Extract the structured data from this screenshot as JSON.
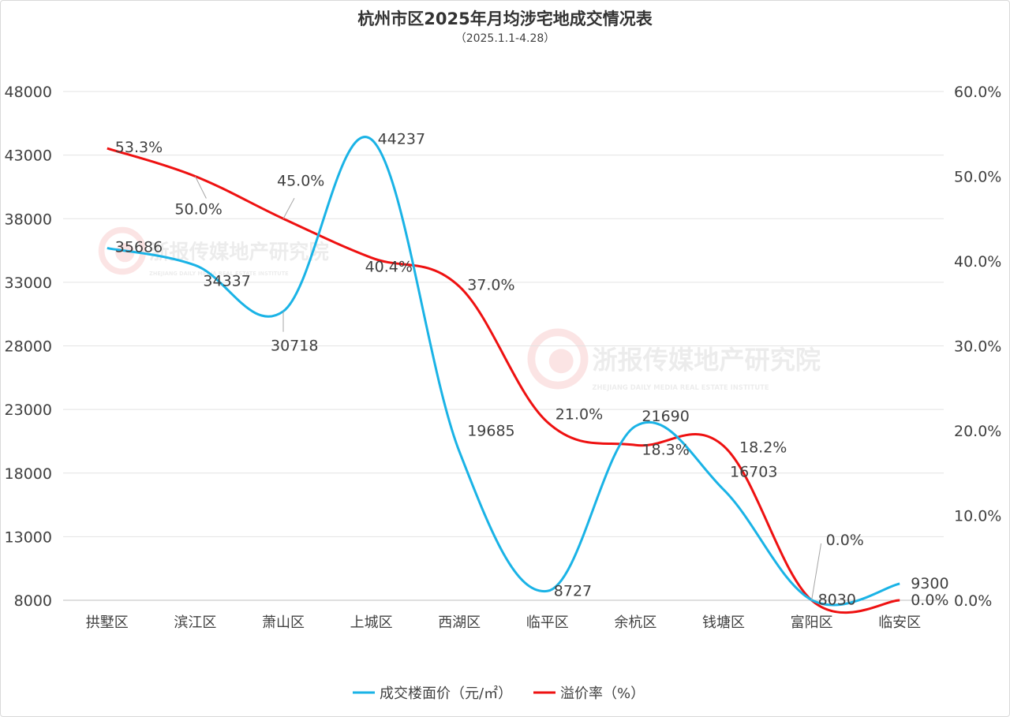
{
  "title": "杭州市区2025年月均涉宅地成交情况表",
  "subtitle": "（2025.1.1-4.28）",
  "watermark": {
    "name": "浙报传媒地产研究院",
    "subtitle": "ZHEJIANG DAILY MEDIA REAL ESTATE INSTITUTE"
  },
  "colors": {
    "price": "#1ab3e6",
    "premium": "#ee1111",
    "grid": "#e3e3e3",
    "text": "#404040"
  },
  "chart_data": {
    "type": "line",
    "categories": [
      "拱墅区",
      "滨江区",
      "萧山区",
      "上城区",
      "西湖区",
      "临平区",
      "余杭区",
      "钱塘区",
      "富阳区",
      "临安区"
    ],
    "y_left": {
      "min": 8000,
      "max": 48000,
      "ticks": [
        "48000",
        "43000",
        "38000",
        "33000",
        "28000",
        "23000",
        "18000",
        "13000",
        "8000"
      ]
    },
    "y_right": {
      "min": 0,
      "max": 60,
      "ticks": [
        "60.0%",
        "50.0%",
        "40.0%",
        "30.0%",
        "20.0%",
        "10.0%",
        "0.0%"
      ]
    },
    "grid": true,
    "legend_position": "bottom",
    "series": [
      {
        "name": "成交楼面价（元/㎡）",
        "axis": "left",
        "values": [
          35686,
          34337,
          30718,
          44237,
          19685,
          8727,
          21690,
          16703,
          8030,
          9300
        ],
        "labels": [
          "35686",
          "34337",
          "30718",
          "44237",
          "19685",
          "8727",
          "21690",
          "16703",
          "8030",
          "9300"
        ]
      },
      {
        "name": "溢价率（%）",
        "axis": "right",
        "values": [
          53.3,
          50.0,
          45.0,
          40.4,
          37.0,
          21.0,
          18.3,
          18.2,
          0.0,
          0.0
        ],
        "labels": [
          "53.3%",
          "50.0%",
          "45.0%",
          "40.4%",
          "37.0%",
          "21.0%",
          "18.3%",
          "18.2%",
          "0.0%",
          "0.0%"
        ]
      }
    ]
  }
}
